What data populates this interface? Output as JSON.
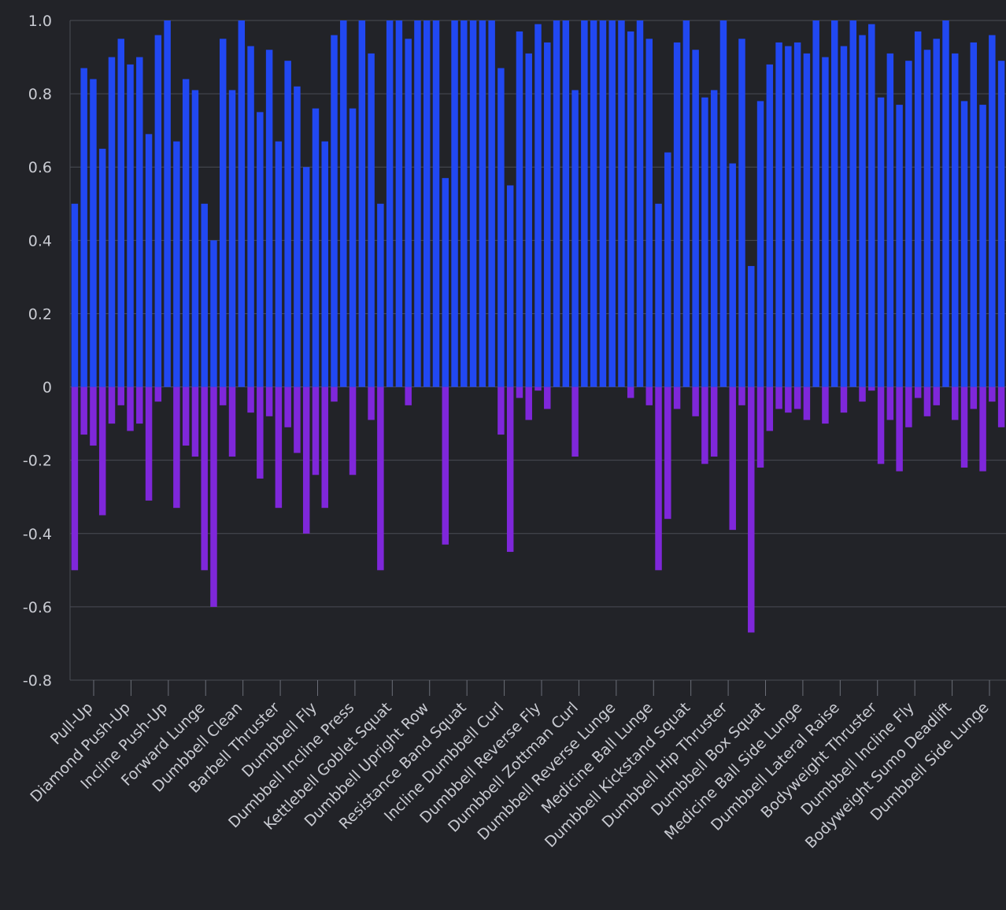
{
  "chart_data": {
    "type": "bar",
    "title": "",
    "xlabel": "",
    "ylabel": "",
    "ylim": [
      -0.8,
      1.0
    ],
    "yticks": [
      "1.0",
      "0.8",
      "0.6",
      "0.4",
      "0.2",
      "0",
      "-0.2",
      "-0.4",
      "-0.6",
      "-0.8"
    ],
    "grid": true,
    "legend": "none",
    "stacked": true,
    "xtick_labels": [
      "Pull-Up",
      "Diamond Push-Up",
      "Incline Push-Up",
      "Forward Lunge",
      "Dumbbell Clean",
      "Barbell Thruster",
      "Dumbbell Fly",
      "Dumbbell Incline Press",
      "Kettlebell Goblet Squat",
      "Dumbbell Upright Row",
      "Resistance Band Squat",
      "Incline Dumbbell Curl",
      "Dumbbell Reverse Fly",
      "Dumbbell Zottman Curl",
      "Dumbbell Reverse Lunge",
      "Medicine Ball Lunge",
      "Dumbbell Kickstand Squat",
      "Dumbbell Hip Thruster",
      "Dumbbell Box Squat",
      "Medicine Ball Side Lunge",
      "Dumbbell Lateral Raise",
      "Bodyweight Thruster",
      "Dumbbell Incline Fly",
      "Bodyweight Sumo Deadlift",
      "Dumbbell Side Lunge"
    ],
    "series": [
      {
        "color": "#2148f2",
        "values": [
          0.5,
          0.87,
          0.84,
          0.65,
          0.9,
          0.95,
          0.88,
          0.9,
          0.69,
          0.96,
          1.0,
          0.67,
          0.84,
          0.81,
          0.5,
          0.4,
          0.95,
          0.81,
          1.0,
          0.93,
          0.75,
          0.92,
          0.67,
          0.89,
          0.82,
          0.6,
          0.76,
          0.67,
          0.96,
          1.0,
          0.76,
          1.0,
          0.91,
          0.5,
          1.0,
          1.0,
          0.95,
          1.0,
          1.0,
          1.0,
          0.57,
          1.0,
          1.0,
          1.0,
          1.0,
          1.0,
          0.87,
          0.55,
          0.97,
          0.91,
          0.99,
          0.94,
          1.0,
          1.0,
          0.81,
          1.0,
          1.0,
          1.0,
          1.0,
          1.0,
          0.97,
          1.0,
          0.95,
          0.5,
          0.64,
          0.94,
          1.0,
          0.92,
          0.79,
          0.81,
          1.0,
          0.61,
          0.95,
          0.33,
          0.78,
          0.88,
          0.94,
          0.93,
          0.94,
          0.91,
          1.0,
          0.9,
          1.0,
          0.93,
          1.0,
          0.96,
          0.99,
          0.79,
          0.91,
          0.77,
          0.89,
          0.97,
          0.92,
          0.95,
          1.0,
          0.91,
          0.78,
          0.94,
          0.77,
          0.96,
          0.89
        ]
      },
      {
        "color": "#7f27da",
        "values": [
          -0.5,
          -0.13,
          -0.16,
          -0.35,
          -0.1,
          -0.05,
          -0.12,
          -0.1,
          -0.31,
          -0.04,
          0,
          -0.33,
          -0.16,
          -0.19,
          -0.5,
          -0.6,
          -0.05,
          -0.19,
          0,
          -0.07,
          -0.25,
          -0.08,
          -0.33,
          -0.11,
          -0.18,
          -0.4,
          -0.24,
          -0.33,
          -0.04,
          0,
          -0.24,
          0,
          -0.09,
          -0.5,
          0,
          0,
          -0.05,
          0,
          0,
          0,
          -0.43,
          0,
          0,
          0,
          0,
          0,
          -0.13,
          -0.45,
          -0.03,
          -0.09,
          -0.01,
          -0.06,
          0,
          0,
          -0.19,
          0,
          0,
          0,
          0,
          0,
          -0.03,
          0,
          -0.05,
          -0.5,
          -0.36,
          -0.06,
          0,
          -0.08,
          -0.21,
          -0.19,
          0,
          -0.39,
          -0.05,
          -0.67,
          -0.22,
          -0.12,
          -0.06,
          -0.07,
          -0.06,
          -0.09,
          0,
          -0.1,
          0,
          -0.07,
          0,
          -0.04,
          -0.01,
          -0.21,
          -0.09,
          -0.23,
          -0.11,
          -0.03,
          -0.08,
          -0.05,
          0,
          -0.09,
          -0.22,
          -0.06,
          -0.23,
          -0.04,
          -0.11
        ]
      }
    ]
  }
}
